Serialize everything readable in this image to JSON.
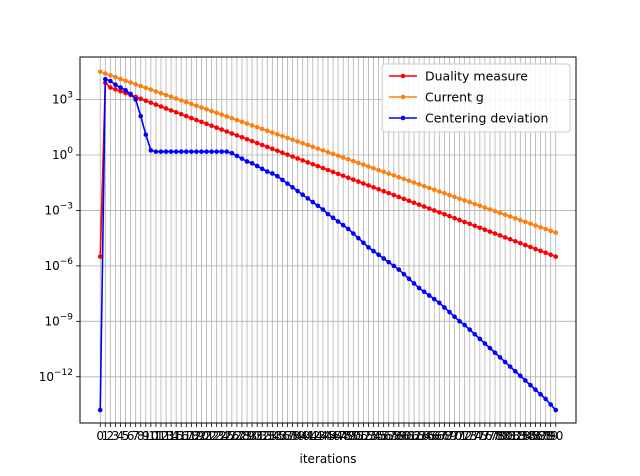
{
  "chart_data": {
    "type": "line",
    "title": "",
    "xlabel": "iterations",
    "ylabel": "",
    "yscale": "log",
    "xlim": [
      -4,
      94
    ],
    "ylim_log10": [
      -14.5,
      5.3
    ],
    "grid": true,
    "legend_position": "top-right",
    "yticks": [
      {
        "exp": 3,
        "label": "10^3"
      },
      {
        "exp": 0,
        "label": "10^0"
      },
      {
        "exp": -3,
        "label": "10^−3"
      },
      {
        "exp": -6,
        "label": "10^−6"
      },
      {
        "exp": -9,
        "label": "10^−9"
      },
      {
        "exp": -12,
        "label": "10^−12"
      }
    ],
    "x_tick_count": 91,
    "series": [
      {
        "name": "Duality measure",
        "color": "#ff0000",
        "x": [
          0,
          1,
          2,
          3,
          4,
          5,
          90
        ],
        "log10_y": [
          -5.5,
          3.9,
          3.65,
          3.55,
          3.45,
          3.35,
          -5.5
        ]
      },
      {
        "name": "Current g",
        "color": "#ff7f0e",
        "x": [
          0,
          90
        ],
        "log10_y": [
          4.5,
          -4.2
        ]
      },
      {
        "name": "Centering deviation",
        "color": "#0000ff",
        "x": [
          0,
          1,
          2,
          3,
          4,
          5,
          6,
          7,
          8,
          9,
          10,
          11,
          12,
          13,
          14,
          15,
          16,
          17,
          18,
          19,
          20,
          21,
          22,
          23,
          24,
          25,
          26,
          27,
          28,
          29,
          30,
          31,
          32,
          33,
          34,
          35,
          36,
          37,
          38,
          39,
          40,
          41,
          42,
          43,
          44,
          45,
          46,
          47,
          48,
          49,
          50,
          51,
          52,
          53,
          54,
          55,
          56,
          57,
          58,
          59,
          60,
          61,
          62,
          63,
          64,
          65,
          66,
          67,
          68,
          69,
          70,
          71,
          72,
          73,
          74,
          75,
          76,
          77,
          78,
          79,
          80,
          81,
          82,
          83,
          84,
          85,
          86,
          87,
          88,
          89,
          90
        ],
        "log10_y": [
          -13.8,
          4.1,
          4.0,
          3.8,
          3.65,
          3.5,
          3.3,
          3.0,
          2.1,
          1.1,
          0.25,
          0.18,
          0.18,
          0.18,
          0.18,
          0.18,
          0.18,
          0.18,
          0.18,
          0.18,
          0.18,
          0.18,
          0.18,
          0.18,
          0.18,
          0.18,
          0.1,
          -0.05,
          -0.2,
          -0.35,
          -0.45,
          -0.6,
          -0.75,
          -0.9,
          -1.0,
          -1.15,
          -1.35,
          -1.55,
          -1.75,
          -1.95,
          -2.15,
          -2.35,
          -2.55,
          -2.75,
          -2.95,
          -3.2,
          -3.4,
          -3.6,
          -3.8,
          -4.0,
          -4.25,
          -4.5,
          -4.75,
          -5.0,
          -5.2,
          -5.4,
          -5.6,
          -5.8,
          -6.0,
          -6.2,
          -6.45,
          -6.7,
          -6.95,
          -7.2,
          -7.4,
          -7.6,
          -7.8,
          -8.0,
          -8.25,
          -8.5,
          -8.75,
          -9.0,
          -9.2,
          -9.45,
          -9.7,
          -9.95,
          -10.2,
          -10.45,
          -10.7,
          -10.95,
          -11.2,
          -11.45,
          -11.7,
          -11.95,
          -12.2,
          -12.45,
          -12.7,
          -12.95,
          -13.2,
          -13.5,
          -13.8
        ]
      }
    ]
  }
}
